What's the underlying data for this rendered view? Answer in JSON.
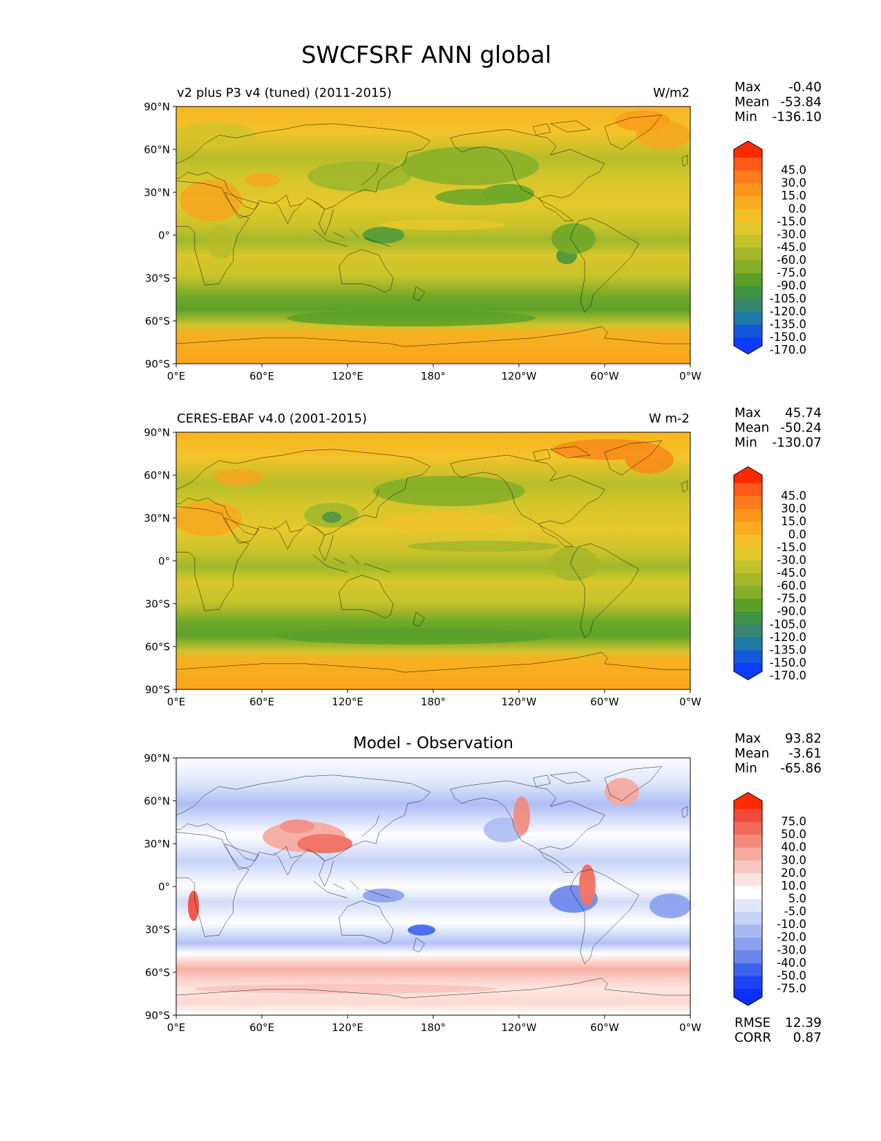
{
  "figure": {
    "title": "SWCFSRF ANN global"
  },
  "axes": {
    "lat_ticks": [
      "90°N",
      "60°N",
      "30°N",
      "0°",
      "30°S",
      "60°S",
      "90°S"
    ],
    "lon_ticks": [
      "0°E",
      "60°E",
      "120°E",
      "180°",
      "120°W",
      "60°W",
      "0°W"
    ]
  },
  "panels": [
    {
      "title_left": "v2 plus P3 v4 (tuned) (2011-2015)",
      "title_center": "",
      "units": "W/m2",
      "stats": [
        {
          "label": "Max",
          "value": "-0.40"
        },
        {
          "label": "Mean",
          "value": "-53.84"
        },
        {
          "label": "Min",
          "value": "-136.10"
        }
      ],
      "colorbar": {
        "levels": [
          "45.0",
          "30.0",
          "15.0",
          "0.0",
          "-15.0",
          "-30.0",
          "-45.0",
          "-60.0",
          "-75.0",
          "-90.0",
          "-105.0",
          "-120.0",
          "-135.0",
          "-150.0",
          "-170.0"
        ],
        "colors": [
          "#ff2a00",
          "#ff5a1a",
          "#ff7a1a",
          "#fb951a",
          "#f9ac20",
          "#f4c02a",
          "#e3c82c",
          "#c4c22a",
          "#a5b82a",
          "#82ae28",
          "#5aa028",
          "#3f9345",
          "#378770",
          "#1f7aa6",
          "#1457d8",
          "#0d3cff"
        ]
      }
    },
    {
      "title_left": "CERES-EBAF v4.0 (2001-2015)",
      "title_center": "",
      "units": "W m-2",
      "stats": [
        {
          "label": "Max",
          "value": "45.74"
        },
        {
          "label": "Mean",
          "value": "-50.24"
        },
        {
          "label": "Min",
          "value": "-130.07"
        }
      ],
      "colorbar": {
        "levels": [
          "45.0",
          "30.0",
          "15.0",
          "0.0",
          "-15.0",
          "-30.0",
          "-45.0",
          "-60.0",
          "-75.0",
          "-90.0",
          "-105.0",
          "-120.0",
          "-135.0",
          "-150.0",
          "-170.0"
        ],
        "colors": [
          "#ff2a00",
          "#ff5a1a",
          "#ff7a1a",
          "#fb951a",
          "#f9ac20",
          "#f4c02a",
          "#e3c82c",
          "#c4c22a",
          "#a5b82a",
          "#82ae28",
          "#5aa028",
          "#3f9345",
          "#378770",
          "#1f7aa6",
          "#1457d8",
          "#0d3cff"
        ]
      }
    },
    {
      "title_left": "",
      "title_center": "Model - Observation",
      "units": "",
      "stats": [
        {
          "label": "Max",
          "value": "93.82"
        },
        {
          "label": "Mean",
          "value": "-3.61"
        },
        {
          "label": "Min",
          "value": "-65.86"
        }
      ],
      "extra_stats": [
        {
          "label": "RMSE",
          "value": "12.39"
        },
        {
          "label": "CORR",
          "value": "0.87"
        }
      ],
      "colorbar": {
        "levels": [
          "75.0",
          "50.0",
          "40.0",
          "30.0",
          "20.0",
          "10.0",
          "5.0",
          "-5.0",
          "-10.0",
          "-20.0",
          "-30.0",
          "-40.0",
          "-50.0",
          "-75.0"
        ],
        "colors": [
          "#ff2a00",
          "#f24a3a",
          "#f26a5a",
          "#f48a7c",
          "#f7aa9e",
          "#fac8c0",
          "#fde4e0",
          "#ffffff",
          "#e2e8fb",
          "#c6d2f8",
          "#a8baf4",
          "#8aa0f0",
          "#6b86ec",
          "#3f62ee",
          "#1f44f4",
          "#0a30ff"
        ]
      }
    }
  ]
}
